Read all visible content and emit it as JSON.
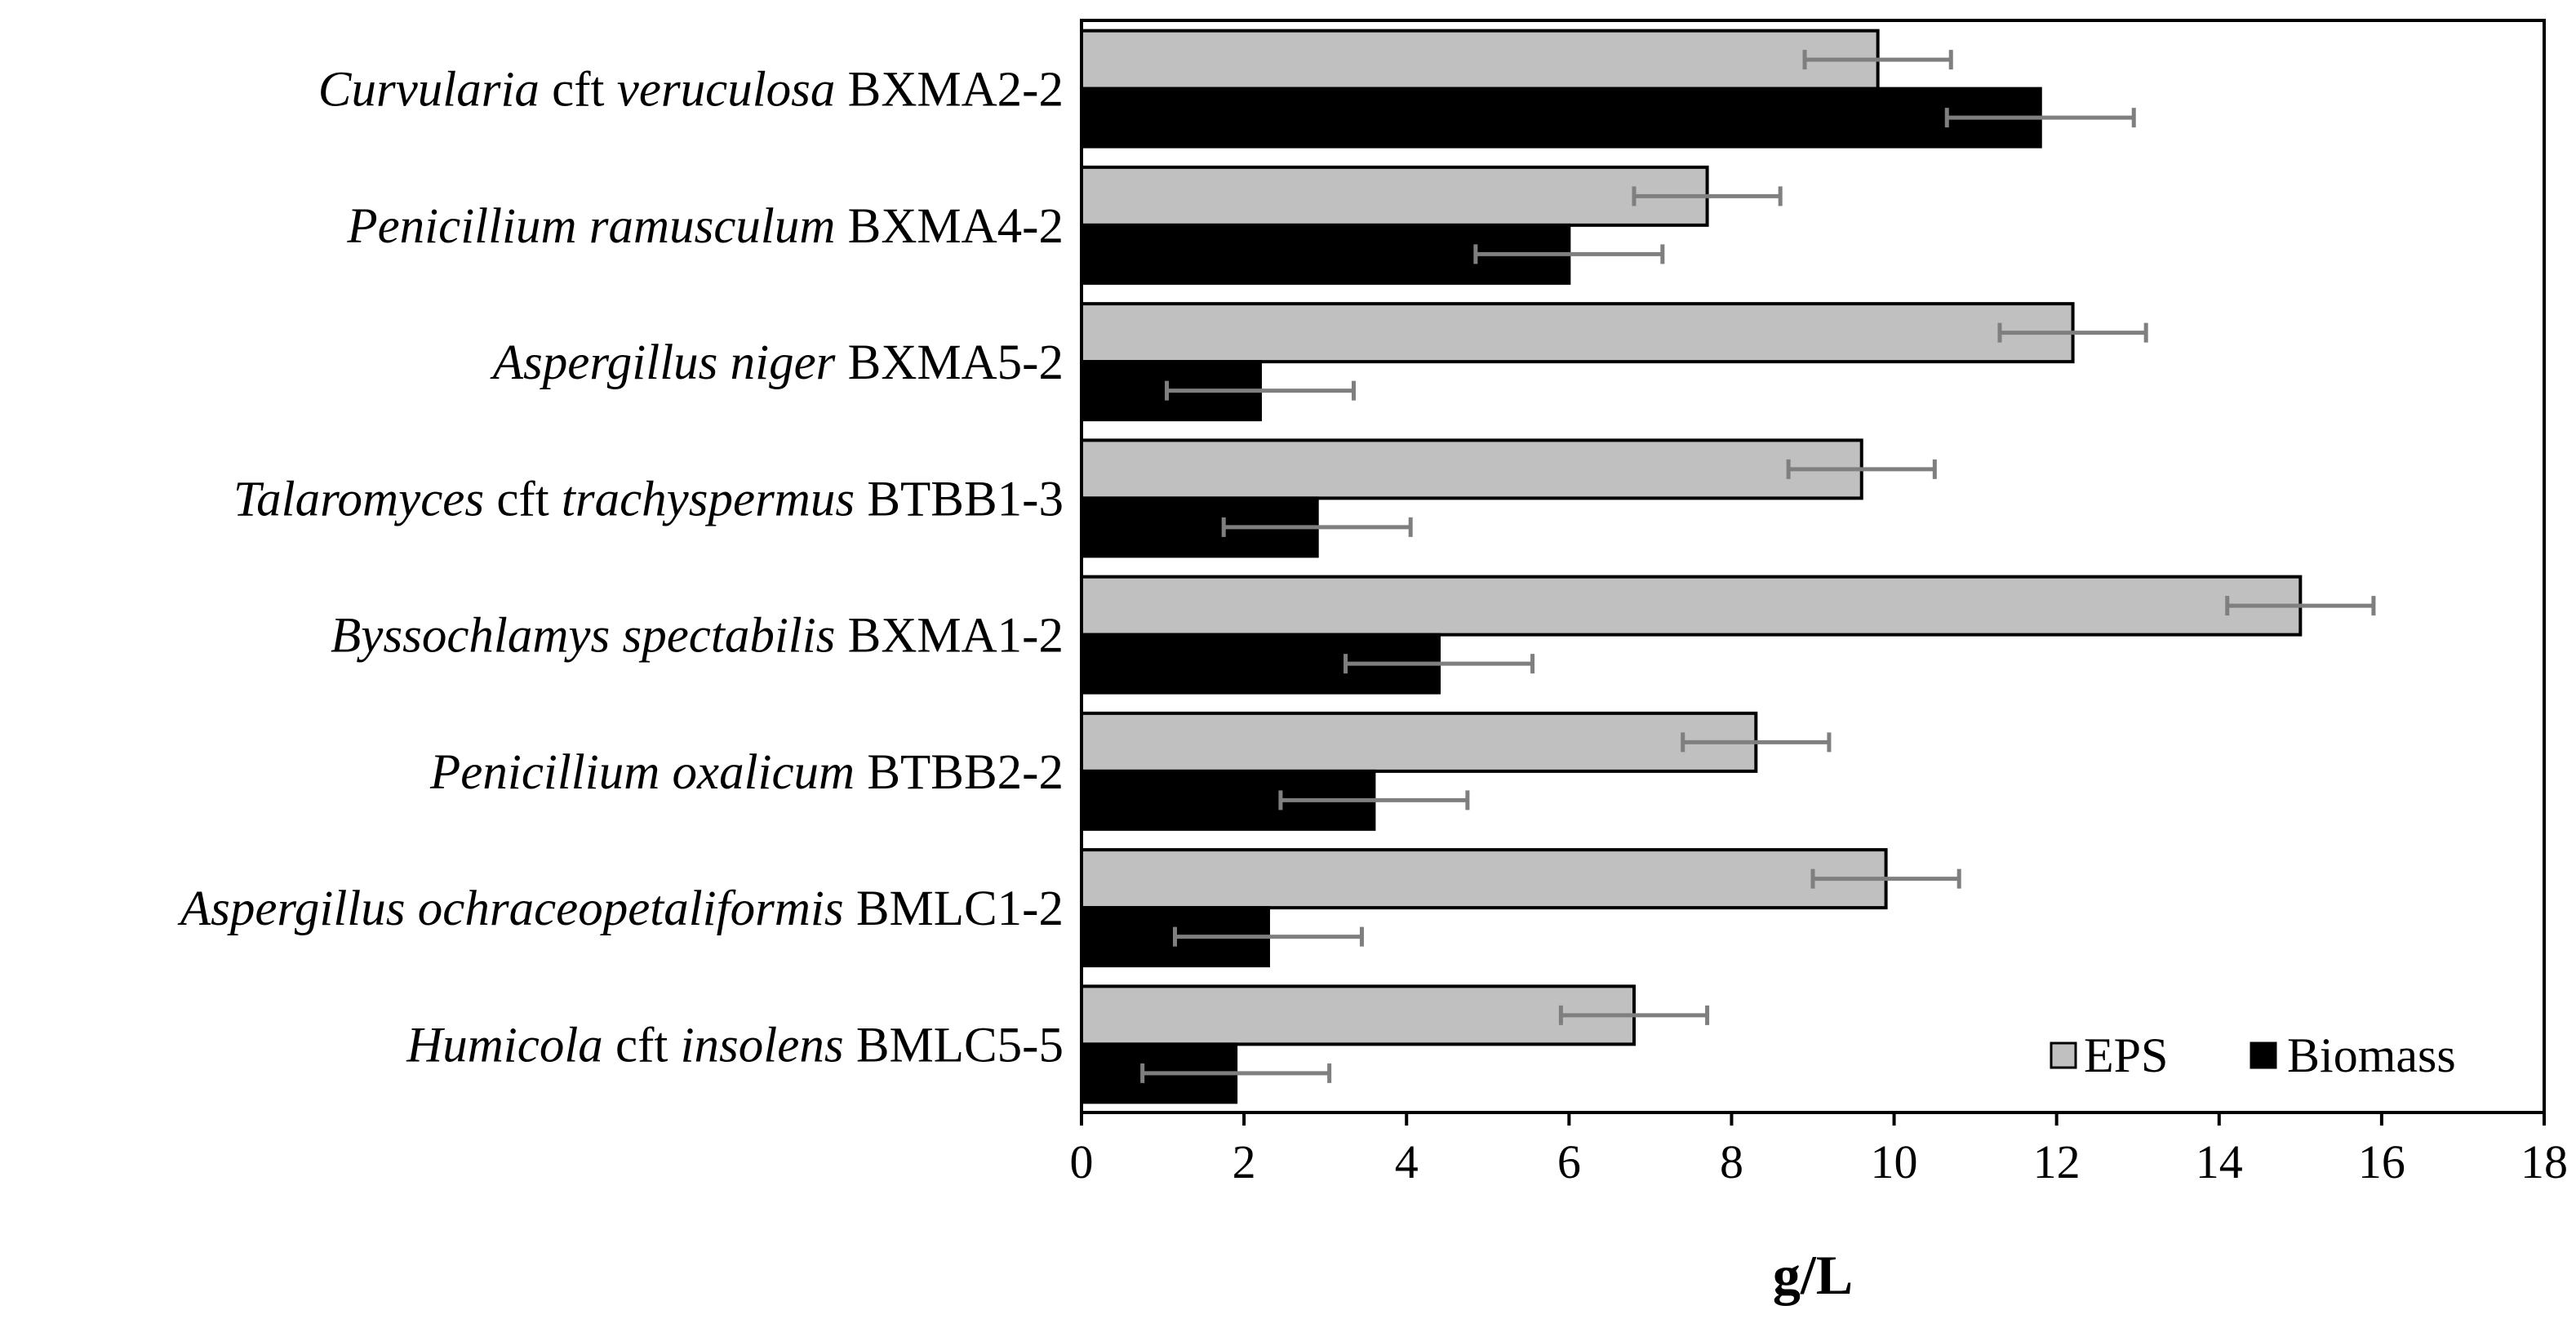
{
  "chart_data": {
    "type": "bar",
    "orientation": "horizontal",
    "xlabel": "g/L",
    "ylabel": "",
    "xlim": [
      0,
      18
    ],
    "xticks": [
      0,
      2,
      4,
      6,
      8,
      10,
      12,
      14,
      16,
      18
    ],
    "grid": false,
    "legend_position": "bottom-right",
    "categories": [
      {
        "genus": "Curvularia",
        "qualifier": "cft",
        "species": "veruculosa",
        "strain": "BXMA2-2"
      },
      {
        "genus": "Penicillium",
        "qualifier": "",
        "species": "ramusculum",
        "strain": "BXMA4-2"
      },
      {
        "genus": "Aspergillus",
        "qualifier": "",
        "species": "niger",
        "strain": "BXMA5-2"
      },
      {
        "genus": "Talaromyces",
        "qualifier": "cft",
        "species": "trachyspermus",
        "strain": "BTBB1-3"
      },
      {
        "genus": "Byssochlamys",
        "qualifier": "",
        "species": "spectabilis",
        "strain": "BXMA1-2"
      },
      {
        "genus": "Penicillium",
        "qualifier": "",
        "species": "oxalicum",
        "strain": "BTBB2-2"
      },
      {
        "genus": "Aspergillus",
        "qualifier": "",
        "species": "ochraceopetaliformis",
        "strain": "BMLC1-2"
      },
      {
        "genus": "Humicola",
        "qualifier": "cft",
        "species": "insolens",
        "strain": "BMLC5-5"
      }
    ],
    "series": [
      {
        "name": "EPS",
        "color": "#c0c0c0",
        "values": [
          9.8,
          7.7,
          12.2,
          9.6,
          15.0,
          8.3,
          9.9,
          6.8
        ],
        "errors": [
          0.9,
          0.9,
          0.9,
          0.9,
          0.9,
          0.9,
          0.9,
          0.9
        ]
      },
      {
        "name": "Biomass",
        "color": "#000000",
        "values": [
          11.8,
          6.0,
          2.2,
          2.9,
          4.4,
          3.6,
          2.3,
          1.9
        ],
        "errors": [
          1.15,
          1.15,
          1.15,
          1.15,
          1.15,
          1.15,
          1.15,
          1.15
        ]
      }
    ]
  },
  "colors": {
    "error_bar": "#7f7f7f",
    "outline": "#000000"
  }
}
